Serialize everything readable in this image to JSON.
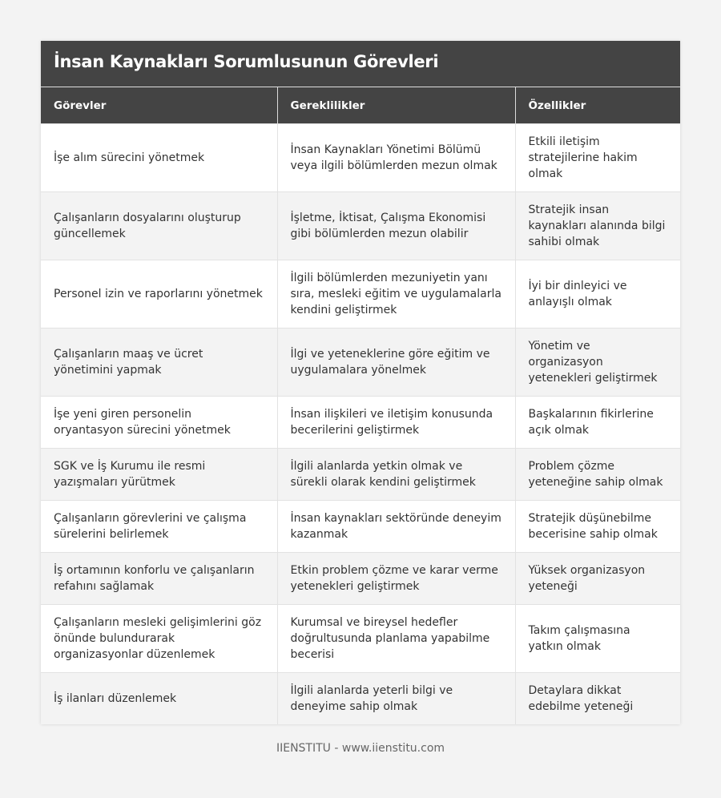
{
  "title": "İnsan Kaynakları Sorumlusunun Görevleri",
  "columns": [
    "Görevler",
    "Gereklilikler",
    "Özellikler"
  ],
  "rows": [
    [
      "İşe alım sürecini yönetmek",
      "İnsan Kaynakları Yönetimi Bölümü veya ilgili bölümlerden mezun olmak",
      "Etkili iletişim stratejilerine hakim olmak"
    ],
    [
      "Çalışanların dosyalarını oluşturup güncellemek",
      "İşletme, İktisat, Çalışma Ekonomisi gibi bölümlerden mezun olabilir",
      "Stratejik insan kaynakları alanında bilgi sahibi olmak"
    ],
    [
      "Personel izin ve raporlarını yönetmek",
      "İlgili bölümlerden mezuniyetin yanı sıra, mesleki eğitim ve uygulamalarla kendini geliştirmek",
      "İyi bir dinleyici ve anlayışlı olmak"
    ],
    [
      "Çalışanların maaş ve ücret yönetimini yapmak",
      "İlgi ve yeteneklerine göre eğitim ve uygulamalara yönelmek",
      "Yönetim ve organizasyon yetenekleri geliştirmek"
    ],
    [
      "İşe yeni giren personelin oryantasyon sürecini yönetmek",
      "İnsan ilişkileri ve iletişim konusunda becerilerini geliştirmek",
      "Başkalarının fikirlerine açık olmak"
    ],
    [
      "SGK ve İş Kurumu ile resmi yazışmaları yürütmek",
      "İlgili alanlarda yetkin olmak ve sürekli olarak kendini geliştirmek",
      "Problem çözme yeteneğine sahip olmak"
    ],
    [
      "Çalışanların görevlerini ve çalışma sürelerini belirlemek",
      "İnsan kaynakları sektöründe deneyim kazanmak",
      "Stratejik düşünebilme becerisine sahip olmak"
    ],
    [
      "İş ortamının konforlu ve çalışanların refahını sağlamak",
      "Etkin problem çözme ve karar verme yetenekleri geliştirmek",
      "Yüksek organizasyon yeteneği"
    ],
    [
      "Çalışanların mesleki gelişimlerini göz önünde bulundurarak organizasyonlar düzenlemek",
      "Kurumsal ve bireysel hedefler doğrultusunda planlama yapabilme becerisi",
      "Takım çalışmasına yatkın olmak"
    ],
    [
      "İş ilanları düzenlemek",
      "İlgili alanlarda yeterli bilgi ve deneyime sahip olmak",
      "Detaylara dikkat edebilme yeteneği"
    ]
  ],
  "footer": "IIENSTITU - www.iienstitu.com"
}
